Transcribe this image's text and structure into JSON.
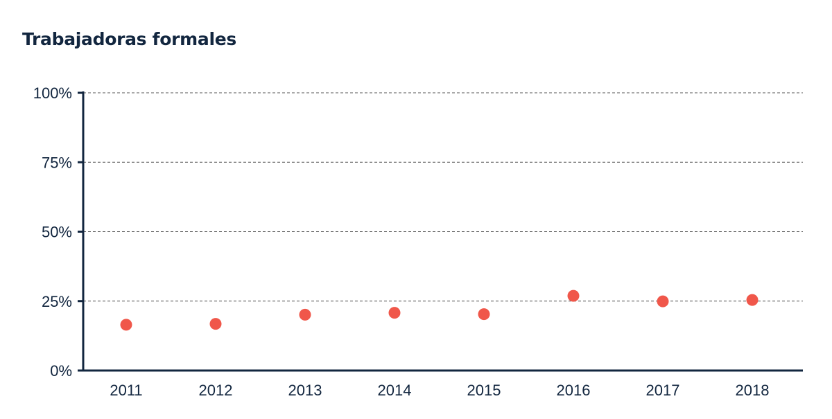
{
  "chart_data": {
    "type": "scatter",
    "title": "Trabajadoras formales",
    "xlabel": "",
    "ylabel": "",
    "categories": [
      "2011",
      "2012",
      "2013",
      "2014",
      "2015",
      "2016",
      "2017",
      "2018"
    ],
    "series": [
      {
        "values": [
          16.5,
          16.8,
          20.1,
          20.8,
          20.3,
          26.9,
          24.9,
          25.4
        ]
      }
    ],
    "ylim": [
      0,
      100
    ],
    "yticks": [
      0,
      25,
      50,
      75,
      100
    ],
    "ytick_labels": [
      "0%",
      "25%",
      "50%",
      "75%",
      "100%"
    ],
    "grid": "horizontal dashed",
    "legend": "none",
    "colors": {
      "point": "#f0574a",
      "axis": "#12263f",
      "grid": "#555555",
      "text": "#12263f"
    }
  }
}
